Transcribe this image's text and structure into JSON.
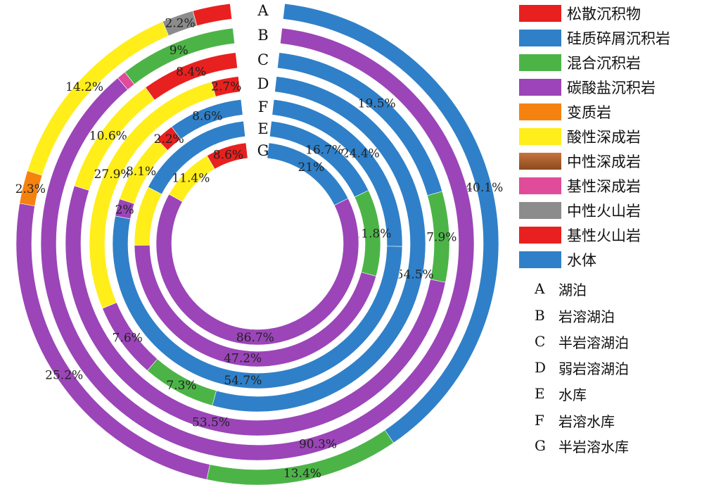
{
  "chart_data": {
    "type": "donut",
    "categories": [
      "松散沉积物",
      "硅质碎屑沉积岩",
      "混合沉积岩",
      "碳酸盐沉积岩",
      "变质岩",
      "酸性深成岩",
      "中性深成岩",
      "基性深成岩",
      "中性火山岩",
      "基性火山岩",
      "水体"
    ],
    "colors": [
      "#e8201f",
      "#2f80c8",
      "#4cb447",
      "#9b45b8",
      "#f5820f",
      "#ffee1a",
      "#a0522d",
      "#e04b9a",
      "#8c8c8c",
      "#e8201f",
      "#2f80c8"
    ],
    "rings": [
      {
        "label": "A",
        "segments": [
          {
            "cat": "硅质碎屑沉积岩",
            "value": 40.1,
            "text": "40.1%"
          },
          {
            "cat": "混合沉积岩",
            "value": 13.4,
            "text": "13.4%"
          },
          {
            "cat": "碳酸盐沉积岩",
            "value": 25.2,
            "text": "25.2%"
          },
          {
            "cat": "变质岩",
            "value": 2.3,
            "text": "2.3%"
          },
          {
            "cat": "酸性深成岩",
            "value": 14.2,
            "text": "14.2%"
          },
          {
            "cat": "中性火山岩",
            "value": 2.2,
            "text": "2.2%"
          },
          {
            "cat": "基性火山岩",
            "value": 2.6,
            "text": ""
          }
        ]
      },
      {
        "label": "B",
        "segments": [
          {
            "cat": "碳酸盐沉积岩",
            "value": 90.3,
            "text": "90.3%"
          },
          {
            "cat": "基性深成岩",
            "value": 0.7,
            "text": ""
          },
          {
            "cat": "混合沉积岩",
            "value": 9.0,
            "text": "9%"
          }
        ]
      },
      {
        "label": "C",
        "segments": [
          {
            "cat": "硅质碎屑沉积岩",
            "value": 19.5,
            "text": "19.5%"
          },
          {
            "cat": "混合沉积岩",
            "value": 7.9,
            "text": "7.9%"
          },
          {
            "cat": "碳酸盐沉积岩",
            "value": 53.5,
            "text": "53.5%"
          },
          {
            "cat": "酸性深成岩",
            "value": 10.6,
            "text": "10.6%"
          },
          {
            "cat": "基性火山岩",
            "value": 8.4,
            "text": "8.4%"
          }
        ]
      },
      {
        "label": "D",
        "segments": [
          {
            "cat": "硅质碎屑沉积岩",
            "value": 54.5,
            "text": "54.5%"
          },
          {
            "cat": "混合沉积岩",
            "value": 7.3,
            "text": "7.3%"
          },
          {
            "cat": "碳酸盐沉积岩",
            "value": 7.6,
            "text": "7.6%"
          },
          {
            "cat": "酸性深成岩",
            "value": 27.9,
            "text": "27.9%"
          },
          {
            "cat": "基性火山岩",
            "value": 2.7,
            "text": "2.7%"
          }
        ]
      },
      {
        "label": "F",
        "segments": [
          {
            "cat": "硅质碎屑沉积岩",
            "value": 24.4,
            "text": "24.4%"
          },
          {
            "cat": "水体",
            "value": 54.7,
            "text": "54.7%"
          },
          {
            "cat": "碳酸盐沉积岩",
            "value": 2.0,
            "text": "2%"
          },
          {
            "cat": "酸性深成岩",
            "value": 8.1,
            "text": "8.1%"
          },
          {
            "cat": "基性火山岩",
            "value": 2.2,
            "text": "2.2%"
          },
          {
            "cat": "硅质碎屑沉积岩",
            "value": 8.6,
            "text": "8.6%"
          }
        ]
      },
      {
        "label": "E",
        "segments": [
          {
            "cat": "硅质碎屑沉积岩",
            "value": 16.7,
            "text": "16.7%"
          },
          {
            "cat": "混合沉积岩",
            "value": 11.8,
            "text": "11.8%"
          },
          {
            "cat": "碳酸盐沉积岩",
            "value": 47.2,
            "text": "47.2%"
          },
          {
            "cat": "酸性深成岩",
            "value": 8.1,
            "text": ""
          },
          {
            "cat": "硅质碎屑沉积岩",
            "value": 16.2,
            "text": ""
          }
        ]
      },
      {
        "label": "G",
        "segments": [
          {
            "cat": "硅质碎屑沉积岩",
            "value": 21.0,
            "text": "21%"
          },
          {
            "cat": "碳酸盐沉积岩",
            "value": 86.7,
            "text": "86.7%"
          },
          {
            "cat": "酸性深成岩",
            "value": 11.4,
            "text": "11.4%"
          },
          {
            "cat": "基性火山岩",
            "value": 8.6,
            "text": "8.6%"
          }
        ]
      }
    ]
  },
  "legend": {
    "items": [
      {
        "label": "松散沉积物",
        "color": "#e8201f"
      },
      {
        "label": "硅质碎屑沉积岩",
        "color": "#2f80c8"
      },
      {
        "label": "混合沉积岩",
        "color": "#4cb447"
      },
      {
        "label": "碳酸盐沉积岩",
        "color": "#9b45b8"
      },
      {
        "label": "变质岩",
        "color": "#f5820f"
      },
      {
        "label": "酸性深成岩",
        "color": "#ffee1a"
      },
      {
        "label": "中性深成岩",
        "color": "#a0522d"
      },
      {
        "label": "基性深成岩",
        "color": "#e04b9a"
      },
      {
        "label": "中性火山岩",
        "color": "#8c8c8c"
      },
      {
        "label": "基性火山岩",
        "color": "#e8201f"
      },
      {
        "label": "水体",
        "color": "#2f80c8"
      }
    ]
  },
  "ring_key": [
    {
      "letter": "A",
      "name": "湖泊"
    },
    {
      "letter": "B",
      "name": "岩溶湖泊"
    },
    {
      "letter": "C",
      "name": "半岩溶湖泊"
    },
    {
      "letter": "D",
      "name": "弱岩溶湖泊"
    },
    {
      "letter": "E",
      "name": "水库"
    },
    {
      "letter": "F",
      "name": "岩溶水库"
    },
    {
      "letter": "G",
      "name": "半岩溶水库"
    }
  ]
}
